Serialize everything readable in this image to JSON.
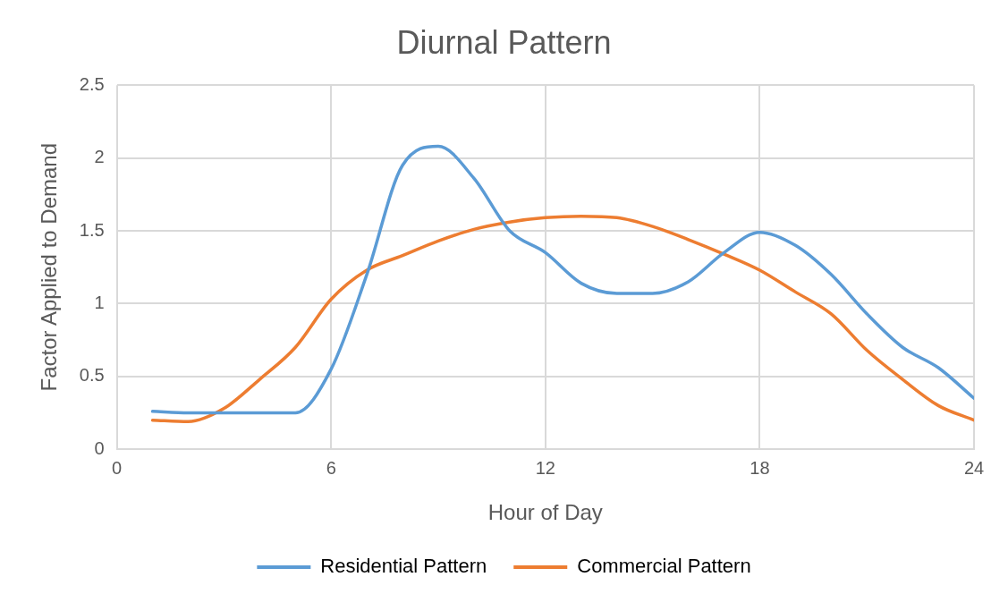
{
  "chart_data": {
    "type": "line",
    "title": "Diurnal Pattern",
    "xlabel": "Hour of Day",
    "ylabel": "Factor Applied to Demand",
    "x": [
      1,
      2,
      3,
      4,
      5,
      6,
      7,
      8,
      9,
      10,
      11,
      12,
      13,
      14,
      15,
      16,
      17,
      18,
      19,
      20,
      21,
      22,
      23,
      24
    ],
    "series": [
      {
        "name": "Residential Pattern",
        "color": "#5b9bd5",
        "values": [
          0.26,
          0.25,
          0.25,
          0.25,
          0.25,
          0.55,
          1.2,
          1.95,
          2.08,
          1.86,
          1.5,
          1.35,
          1.14,
          1.07,
          1.07,
          1.15,
          1.35,
          1.49,
          1.4,
          1.2,
          0.93,
          0.7,
          0.56,
          0.35
        ]
      },
      {
        "name": "Commercial Pattern",
        "color": "#ed7d31",
        "values": [
          0.2,
          0.19,
          0.28,
          0.48,
          0.7,
          1.03,
          1.23,
          1.33,
          1.43,
          1.51,
          1.56,
          1.59,
          1.6,
          1.59,
          1.53,
          1.44,
          1.34,
          1.23,
          1.08,
          0.93,
          0.68,
          0.48,
          0.3,
          0.2
        ]
      }
    ],
    "xlim": [
      0,
      24
    ],
    "xticks": [
      0,
      6,
      12,
      18,
      24
    ],
    "ylim": [
      0,
      2.5
    ],
    "yticks": [
      0,
      0.5,
      1,
      1.5,
      2,
      2.5
    ],
    "grid": true,
    "legend": "bottom",
    "marker": "none",
    "line_style": "solid"
  }
}
